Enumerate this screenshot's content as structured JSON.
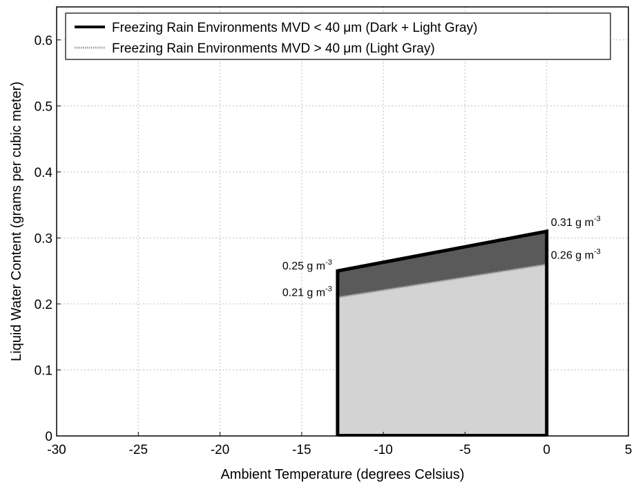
{
  "chart_data": {
    "type": "area",
    "xlabel": "Ambient Temperature (degrees Celsius)",
    "ylabel": "Liquid Water Content (grams per cubic meter)",
    "xlim": [
      -30,
      5
    ],
    "ylim": [
      0,
      0.65
    ],
    "xticks": [
      -30,
      -25,
      -20,
      -15,
      -10,
      -5,
      0,
      5
    ],
    "xtick_labels": [
      "-30",
      "-25",
      "-20",
      "-15",
      "-10",
      "-5",
      "0",
      "5"
    ],
    "yticks": [
      0,
      0.1,
      0.2,
      0.3,
      0.4,
      0.5,
      0.6
    ],
    "ytick_labels": [
      "0",
      "0.1",
      "0.2",
      "0.3",
      "0.4",
      "0.5",
      "0.6"
    ],
    "grid": true,
    "legend_position": "top",
    "series": [
      {
        "name": "Freezing Rain Environments MVD < 40 μm (Dark + Light Gray)",
        "x": [
          -12.8,
          0
        ],
        "y": [
          0.25,
          0.31
        ],
        "line_style": "solid",
        "fill_color": "#5a5a5a"
      },
      {
        "name": "Freezing Rain Environments MVD > 40 μm (Light Gray)",
        "x": [
          -12.8,
          0
        ],
        "y": [
          0.21,
          0.26
        ],
        "line_style": "dotted",
        "fill_color": "#d3d3d3"
      }
    ],
    "annotations": [
      {
        "text": "0.25 g m",
        "sup": "-3",
        "x": -12.8,
        "y": 0.25,
        "side": "left"
      },
      {
        "text": "0.21 g m",
        "sup": "-3",
        "x": -12.8,
        "y": 0.21,
        "side": "left"
      },
      {
        "text": "0.31 g m",
        "sup": "-3",
        "x": 0,
        "y": 0.31,
        "side": "right"
      },
      {
        "text": "0.26 g m",
        "sup": "-3",
        "x": 0,
        "y": 0.26,
        "side": "right"
      }
    ]
  }
}
